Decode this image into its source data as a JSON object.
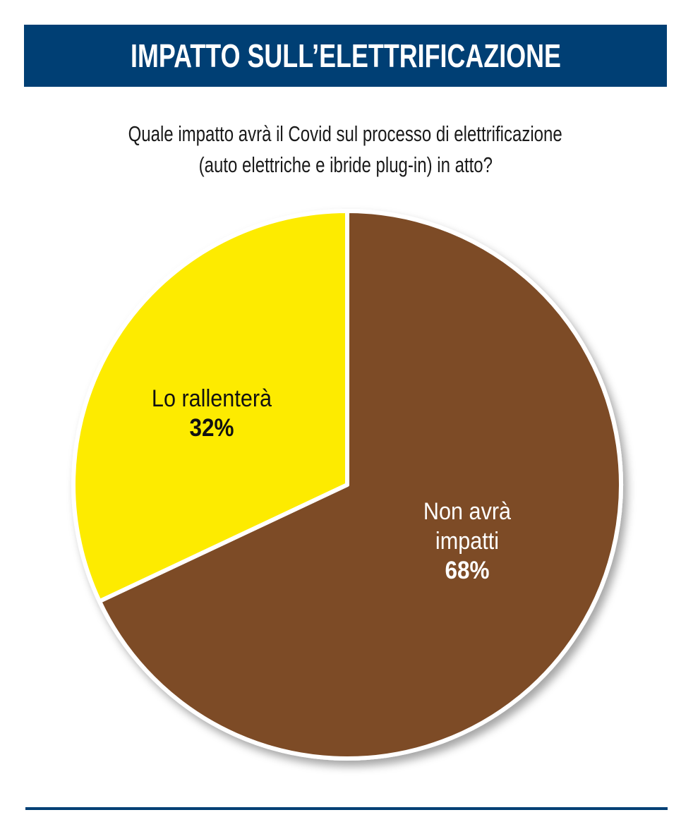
{
  "header": {
    "title": "IMPATTO SULL’ELETTRIFICAZIONE",
    "title_bg_color": "#003f74"
  },
  "question": {
    "line1": "Quale impatto avrà il Covid sul processo di elettrificazione",
    "line2": "(auto elettriche e ibride plug-in) in atto?"
  },
  "chart_data": {
    "type": "pie",
    "slices": [
      {
        "label_line1": "Non avrà",
        "label_line2": "impatti",
        "value": 68,
        "value_label": "68%",
        "color": "#7d4c27"
      },
      {
        "label_line1": "Lo rallenterà",
        "label_line2": "",
        "value": 32,
        "value_label": "32%",
        "color": "#fdeb00"
      }
    ],
    "start_angle_deg": 0,
    "direction": "clockwise",
    "separator_color": "#ffffff",
    "shadow_color": "#b3b3b3"
  },
  "footer": {
    "rule_color": "#003f74"
  }
}
